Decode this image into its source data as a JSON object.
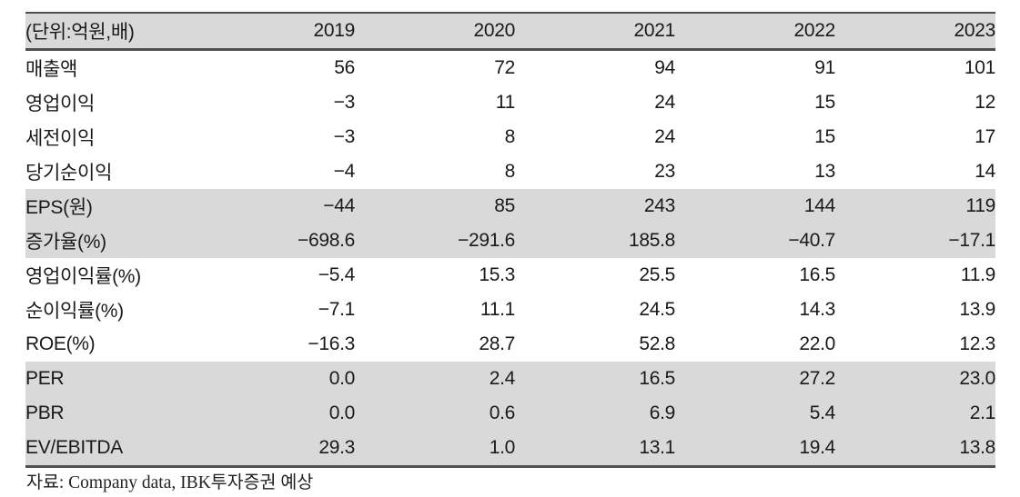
{
  "colors": {
    "row_shade": "#d9d9d9",
    "header_shade": "#d9d9d9",
    "border_dark": "#4f4f4f",
    "text": "#1a1a1a",
    "background": "#ffffff"
  },
  "table": {
    "unit_label": "(단위:억원,배)",
    "year_headers": [
      "2019",
      "2020",
      "2021",
      "2022",
      "2023"
    ],
    "rows": [
      {
        "label": "매출액",
        "values": [
          "56",
          "72",
          "94",
          "91",
          "101"
        ],
        "shaded": false
      },
      {
        "label": "영업이익",
        "values": [
          "−3",
          "11",
          "24",
          "15",
          "12"
        ],
        "shaded": false
      },
      {
        "label": "세전이익",
        "values": [
          "−3",
          "8",
          "24",
          "15",
          "17"
        ],
        "shaded": false
      },
      {
        "label": "당기순이익",
        "values": [
          "−4",
          "8",
          "23",
          "13",
          "14"
        ],
        "shaded": false
      },
      {
        "label": "EPS(원)",
        "values": [
          "−44",
          "85",
          "243",
          "144",
          "119"
        ],
        "shaded": true
      },
      {
        "label": "증가율(%)",
        "values": [
          "−698.6",
          "−291.6",
          "185.8",
          "−40.7",
          "−17.1"
        ],
        "shaded": true
      },
      {
        "label": "영업이익률(%)",
        "values": [
          "−5.4",
          "15.3",
          "25.5",
          "16.5",
          "11.9"
        ],
        "shaded": false
      },
      {
        "label": "순이익률(%)",
        "values": [
          "−7.1",
          "11.1",
          "24.5",
          "14.3",
          "13.9"
        ],
        "shaded": false
      },
      {
        "label": "ROE(%)",
        "values": [
          "−16.3",
          "28.7",
          "52.8",
          "22.0",
          "12.3"
        ],
        "shaded": false
      },
      {
        "label": "PER",
        "values": [
          "0.0",
          "2.4",
          "16.5",
          "27.2",
          "23.0"
        ],
        "shaded": true
      },
      {
        "label": "PBR",
        "values": [
          "0.0",
          "0.6",
          "6.9",
          "5.4",
          "2.1"
        ],
        "shaded": true
      },
      {
        "label": "EV/EBITDA",
        "values": [
          "29.3",
          "1.0",
          "13.1",
          "19.4",
          "13.8"
        ],
        "shaded": true
      }
    ]
  },
  "footer": {
    "source_text": "자료: Company data, IBK투자증권 예상"
  },
  "chart_data": {
    "type": "table",
    "title": "(단위:억원,배)",
    "columns": [
      "(단위:억원,배)",
      "2019",
      "2020",
      "2021",
      "2022",
      "2023"
    ],
    "rows": [
      [
        "매출액",
        56,
        72,
        94,
        91,
        101
      ],
      [
        "영업이익",
        -3,
        11,
        24,
        15,
        12
      ],
      [
        "세전이익",
        -3,
        8,
        24,
        15,
        17
      ],
      [
        "당기순이익",
        -4,
        8,
        23,
        13,
        14
      ],
      [
        "EPS(원)",
        -44,
        85,
        243,
        144,
        119
      ],
      [
        "증가율(%)",
        -698.6,
        -291.6,
        185.8,
        -40.7,
        -17.1
      ],
      [
        "영업이익률(%)",
        -5.4,
        15.3,
        25.5,
        16.5,
        11.9
      ],
      [
        "순이익률(%)",
        -7.1,
        11.1,
        24.5,
        14.3,
        13.9
      ],
      [
        "ROE(%)",
        -16.3,
        28.7,
        52.8,
        22.0,
        12.3
      ],
      [
        "PER",
        0.0,
        2.4,
        16.5,
        27.2,
        23.0
      ],
      [
        "PBR",
        0.0,
        0.6,
        6.9,
        5.4,
        2.1
      ],
      [
        "EV/EBITDA",
        29.3,
        1.0,
        13.1,
        19.4,
        13.8
      ]
    ],
    "shaded_row_labels": [
      "EPS(원)",
      "증가율(%)",
      "PER",
      "PBR",
      "EV/EBITDA"
    ],
    "source_note": "자료: Company data, IBK투자증권 예상"
  }
}
